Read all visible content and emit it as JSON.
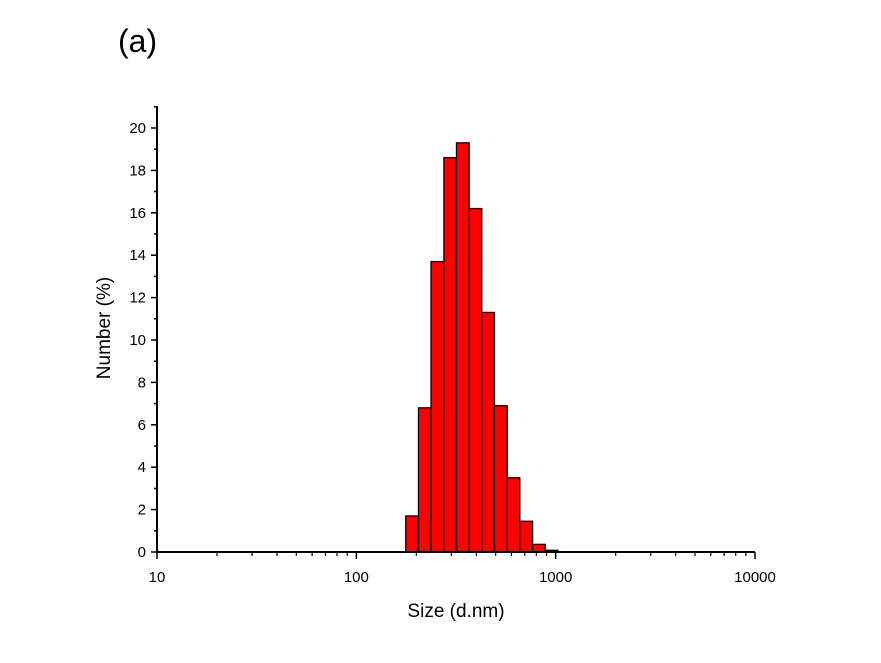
{
  "panel_label": "(a)",
  "chart_data": {
    "type": "bar",
    "title": "",
    "xlabel": "Size (d.nm)",
    "ylabel": "Number (%)",
    "x_scale": "log",
    "xlim": [
      10,
      10000
    ],
    "ylim": [
      0,
      21
    ],
    "x_ticks": [
      "10",
      "100",
      "1000",
      "10000"
    ],
    "y_ticks": [
      "0",
      "2",
      "4",
      "6",
      "8",
      "10",
      "12",
      "14",
      "16",
      "18",
      "20"
    ],
    "grid": false,
    "bar_color": "#ff0000",
    "edge_color": "#000000",
    "bin_edges": [
      177,
      205,
      237,
      275,
      318,
      368,
      426,
      493,
      571,
      661,
      766,
      887,
      1027
    ],
    "values": [
      1.7,
      6.8,
      13.7,
      18.6,
      19.3,
      16.2,
      11.3,
      6.9,
      3.5,
      1.45,
      0.36,
      0.08
    ]
  }
}
